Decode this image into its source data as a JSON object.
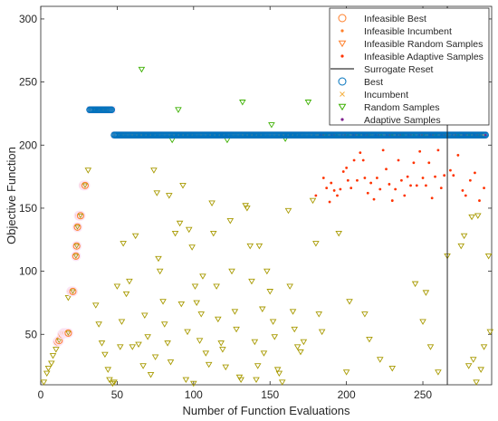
{
  "chart_data": {
    "type": "scatter",
    "xlabel": "Number of Function Evaluations",
    "ylabel": "Objective Function",
    "xlim": [
      0,
      295
    ],
    "ylim": [
      10,
      310
    ],
    "xticks": [
      0,
      50,
      100,
      150,
      200,
      250
    ],
    "yticks": [
      50,
      100,
      150,
      200,
      250,
      300
    ],
    "grid": false,
    "legend_placement": "top-right",
    "legend": [
      {
        "name": "Infeasible Best",
        "marker": "circle",
        "color": "#ff7f2a"
      },
      {
        "name": "Infeasible Incumbent",
        "marker": "dot",
        "color": "#ff7f2a"
      },
      {
        "name": "Infeasible Random Samples",
        "marker": "triangle-down",
        "color": "#ff7f2a"
      },
      {
        "name": "Infeasible Adaptive Samples",
        "marker": "dot",
        "color": "#ff3300"
      },
      {
        "name": "Surrogate Reset",
        "marker": "line",
        "color": "#000000"
      },
      {
        "name": "Best",
        "marker": "circle",
        "color": "#0072bd"
      },
      {
        "name": "Incumbent",
        "marker": "x",
        "color": "#f5b041"
      },
      {
        "name": "Random Samples",
        "marker": "triangle-down",
        "color": "#3cb000"
      },
      {
        "name": "Adaptive Samples",
        "marker": "dot",
        "color": "#7e1f8e"
      }
    ],
    "surrogate_reset_x": 266,
    "best_levels": [
      {
        "x_start": 32,
        "x_end": 47,
        "y": 228
      },
      {
        "x_start": 48,
        "x_end": 291,
        "y": 208
      }
    ],
    "infeasible_best": [
      {
        "x": 11,
        "y": 44
      },
      {
        "x": 12,
        "y": 45
      },
      {
        "x": 14,
        "y": 50
      },
      {
        "x": 15,
        "y": 51
      },
      {
        "x": 16,
        "y": 51
      },
      {
        "x": 17,
        "y": 51
      },
      {
        "x": 18,
        "y": 51
      },
      {
        "x": 20,
        "y": 84
      },
      {
        "x": 21,
        "y": 84
      },
      {
        "x": 23,
        "y": 112
      },
      {
        "x": 23.5,
        "y": 120
      },
      {
        "x": 24,
        "y": 135
      },
      {
        "x": 25,
        "y": 144
      },
      {
        "x": 26,
        "y": 144
      },
      {
        "x": 28,
        "y": 168
      },
      {
        "x": 29,
        "y": 168
      }
    ],
    "random_samples": [
      {
        "x": 2,
        "y": 12
      },
      {
        "x": 4,
        "y": 19
      },
      {
        "x": 5,
        "y": 23
      },
      {
        "x": 7,
        "y": 27
      },
      {
        "x": 8,
        "y": 33
      },
      {
        "x": 10,
        "y": 38
      },
      {
        "x": 12,
        "y": 45
      },
      {
        "x": 18,
        "y": 79
      },
      {
        "x": 19,
        "y": 82
      },
      {
        "x": 31,
        "y": 180
      },
      {
        "x": 36,
        "y": 73
      },
      {
        "x": 38,
        "y": 58
      },
      {
        "x": 40,
        "y": 43
      },
      {
        "x": 42,
        "y": 34
      },
      {
        "x": 44,
        "y": 22
      },
      {
        "x": 45,
        "y": 14
      },
      {
        "x": 47,
        "y": 11
      },
      {
        "x": 48,
        "y": 12
      },
      {
        "x": 50,
        "y": 88
      },
      {
        "x": 52,
        "y": 40
      },
      {
        "x": 53,
        "y": 60
      },
      {
        "x": 54,
        "y": 122
      },
      {
        "x": 56,
        "y": 82
      },
      {
        "x": 58,
        "y": 92
      },
      {
        "x": 60,
        "y": 40
      },
      {
        "x": 62,
        "y": 128
      },
      {
        "x": 64,
        "y": 42
      },
      {
        "x": 66,
        "y": 260
      },
      {
        "x": 67,
        "y": 25
      },
      {
        "x": 68,
        "y": 65
      },
      {
        "x": 70,
        "y": 48
      },
      {
        "x": 72,
        "y": 18
      },
      {
        "x": 74,
        "y": 180
      },
      {
        "x": 75,
        "y": 32
      },
      {
        "x": 76,
        "y": 162
      },
      {
        "x": 77,
        "y": 110
      },
      {
        "x": 78,
        "y": 100
      },
      {
        "x": 80,
        "y": 76
      },
      {
        "x": 81,
        "y": 58
      },
      {
        "x": 83,
        "y": 43
      },
      {
        "x": 84,
        "y": 160
      },
      {
        "x": 85,
        "y": 28
      },
      {
        "x": 86,
        "y": 204
      },
      {
        "x": 88,
        "y": 130
      },
      {
        "x": 90,
        "y": 228
      },
      {
        "x": 91,
        "y": 138
      },
      {
        "x": 92,
        "y": 74
      },
      {
        "x": 93,
        "y": 168
      },
      {
        "x": 95,
        "y": 14
      },
      {
        "x": 96,
        "y": 52
      },
      {
        "x": 97,
        "y": 133
      },
      {
        "x": 99,
        "y": 119
      },
      {
        "x": 100,
        "y": 11
      },
      {
        "x": 101,
        "y": 88
      },
      {
        "x": 102,
        "y": 75
      },
      {
        "x": 104,
        "y": 45
      },
      {
        "x": 105,
        "y": 66
      },
      {
        "x": 106,
        "y": 96
      },
      {
        "x": 108,
        "y": 35
      },
      {
        "x": 110,
        "y": 26
      },
      {
        "x": 112,
        "y": 154
      },
      {
        "x": 113,
        "y": 130
      },
      {
        "x": 115,
        "y": 88
      },
      {
        "x": 116,
        "y": 62
      },
      {
        "x": 118,
        "y": 43
      },
      {
        "x": 119,
        "y": 38
      },
      {
        "x": 121,
        "y": 24
      },
      {
        "x": 122,
        "y": 204
      },
      {
        "x": 124,
        "y": 140
      },
      {
        "x": 125,
        "y": 100
      },
      {
        "x": 127,
        "y": 68
      },
      {
        "x": 128,
        "y": 54
      },
      {
        "x": 130,
        "y": 16
      },
      {
        "x": 131,
        "y": 14
      },
      {
        "x": 132,
        "y": 234
      },
      {
        "x": 134,
        "y": 152
      },
      {
        "x": 135,
        "y": 150
      },
      {
        "x": 137,
        "y": 120
      },
      {
        "x": 138,
        "y": 92
      },
      {
        "x": 140,
        "y": 44
      },
      {
        "x": 141,
        "y": 14
      },
      {
        "x": 142,
        "y": 25
      },
      {
        "x": 143,
        "y": 120
      },
      {
        "x": 145,
        "y": 70
      },
      {
        "x": 146,
        "y": 35
      },
      {
        "x": 148,
        "y": 100
      },
      {
        "x": 150,
        "y": 84
      },
      {
        "x": 151,
        "y": 216
      },
      {
        "x": 152,
        "y": 60
      },
      {
        "x": 153,
        "y": 48
      },
      {
        "x": 155,
        "y": 22
      },
      {
        "x": 156,
        "y": 19
      },
      {
        "x": 158,
        "y": 12
      },
      {
        "x": 160,
        "y": 205
      },
      {
        "x": 162,
        "y": 148
      },
      {
        "x": 163,
        "y": 88
      },
      {
        "x": 165,
        "y": 68
      },
      {
        "x": 166,
        "y": 54
      },
      {
        "x": 168,
        "y": 40
      },
      {
        "x": 170,
        "y": 36
      },
      {
        "x": 172,
        "y": 44
      },
      {
        "x": 175,
        "y": 234
      },
      {
        "x": 178,
        "y": 156
      },
      {
        "x": 180,
        "y": 122
      },
      {
        "x": 182,
        "y": 66
      },
      {
        "x": 184,
        "y": 52
      },
      {
        "x": 195,
        "y": 130
      },
      {
        "x": 200,
        "y": 20
      },
      {
        "x": 202,
        "y": 76
      },
      {
        "x": 212,
        "y": 66
      },
      {
        "x": 215,
        "y": 46
      },
      {
        "x": 222,
        "y": 30
      },
      {
        "x": 230,
        "y": 23
      },
      {
        "x": 245,
        "y": 90
      },
      {
        "x": 250,
        "y": 60
      },
      {
        "x": 252,
        "y": 83
      },
      {
        "x": 255,
        "y": 40
      },
      {
        "x": 260,
        "y": 20
      },
      {
        "x": 266,
        "y": 112
      },
      {
        "x": 275,
        "y": 120
      },
      {
        "x": 277,
        "y": 128
      },
      {
        "x": 280,
        "y": 25
      },
      {
        "x": 282,
        "y": 143
      },
      {
        "x": 283,
        "y": 30
      },
      {
        "x": 285,
        "y": 12
      },
      {
        "x": 286,
        "y": 144
      },
      {
        "x": 288,
        "y": 22
      },
      {
        "x": 290,
        "y": 40
      },
      {
        "x": 293,
        "y": 112
      },
      {
        "x": 294,
        "y": 52
      }
    ],
    "infeasible_adaptive": [
      {
        "x": 180,
        "y": 160
      },
      {
        "x": 185,
        "y": 174
      },
      {
        "x": 187,
        "y": 166
      },
      {
        "x": 189,
        "y": 155
      },
      {
        "x": 190,
        "y": 170
      },
      {
        "x": 192,
        "y": 164
      },
      {
        "x": 194,
        "y": 160
      },
      {
        "x": 196,
        "y": 165
      },
      {
        "x": 198,
        "y": 179
      },
      {
        "x": 200,
        "y": 182
      },
      {
        "x": 201,
        "y": 172
      },
      {
        "x": 203,
        "y": 166
      },
      {
        "x": 205,
        "y": 188
      },
      {
        "x": 207,
        "y": 172
      },
      {
        "x": 209,
        "y": 194
      },
      {
        "x": 211,
        "y": 188
      },
      {
        "x": 212,
        "y": 174
      },
      {
        "x": 214,
        "y": 162
      },
      {
        "x": 216,
        "y": 170
      },
      {
        "x": 218,
        "y": 157
      },
      {
        "x": 220,
        "y": 174
      },
      {
        "x": 222,
        "y": 165
      },
      {
        "x": 224,
        "y": 196
      },
      {
        "x": 226,
        "y": 181
      },
      {
        "x": 228,
        "y": 169
      },
      {
        "x": 230,
        "y": 156
      },
      {
        "x": 232,
        "y": 165
      },
      {
        "x": 234,
        "y": 188
      },
      {
        "x": 236,
        "y": 172
      },
      {
        "x": 238,
        "y": 160
      },
      {
        "x": 240,
        "y": 175
      },
      {
        "x": 242,
        "y": 168
      },
      {
        "x": 244,
        "y": 186
      },
      {
        "x": 246,
        "y": 168
      },
      {
        "x": 248,
        "y": 195
      },
      {
        "x": 250,
        "y": 174
      },
      {
        "x": 252,
        "y": 168
      },
      {
        "x": 254,
        "y": 186
      },
      {
        "x": 256,
        "y": 158
      },
      {
        "x": 258,
        "y": 175
      },
      {
        "x": 260,
        "y": 196
      },
      {
        "x": 262,
        "y": 166
      },
      {
        "x": 264,
        "y": 176
      },
      {
        "x": 268,
        "y": 180
      },
      {
        "x": 270,
        "y": 176
      },
      {
        "x": 273,
        "y": 192
      },
      {
        "x": 276,
        "y": 164
      },
      {
        "x": 278,
        "y": 160
      },
      {
        "x": 281,
        "y": 172
      },
      {
        "x": 284,
        "y": 178
      },
      {
        "x": 287,
        "y": 156
      },
      {
        "x": 290,
        "y": 166
      }
    ]
  }
}
